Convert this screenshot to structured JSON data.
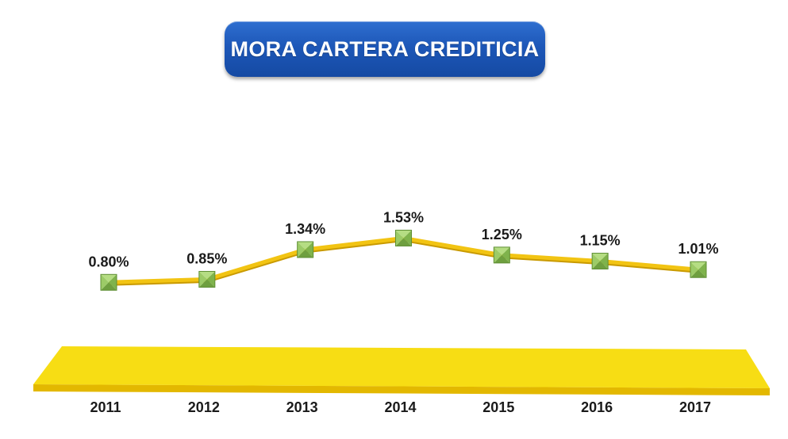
{
  "chart_data": {
    "type": "line",
    "title": "MORA CARTERA CREDITICIA",
    "categories": [
      "2011",
      "2012",
      "2013",
      "2014",
      "2015",
      "2016",
      "2017"
    ],
    "values": [
      0.8,
      0.85,
      1.34,
      1.53,
      1.25,
      1.15,
      1.01
    ],
    "value_labels": [
      "0.80%",
      "0.85%",
      "1.34%",
      "1.53%",
      "1.25%",
      "1.15%",
      "1.01%"
    ],
    "ylim": [
      0,
      2.0
    ],
    "grid": false,
    "legend": "none",
    "colors": {
      "line": "#f2c413",
      "marker": "#8cc157",
      "floor": "#f7d90f",
      "floor_edge": "#e0b400",
      "title_bg": "#1d57b8"
    }
  }
}
